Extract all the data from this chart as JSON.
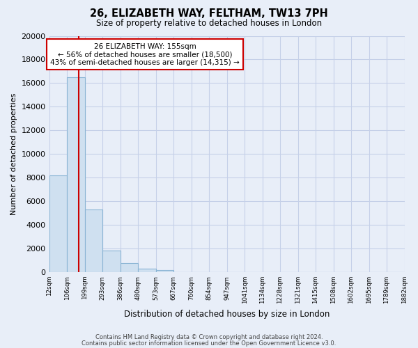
{
  "title": "26, ELIZABETH WAY, FELTHAM, TW13 7PH",
  "subtitle": "Size of property relative to detached houses in London",
  "xlabel": "Distribution of detached houses by size in London",
  "ylabel": "Number of detached properties",
  "bar_values": [
    8200,
    16500,
    5300,
    1800,
    750,
    300,
    200,
    0,
    0,
    0,
    0,
    0,
    0,
    0,
    0,
    0,
    0,
    0,
    0,
    0
  ],
  "bar_labels": [
    "12sqm",
    "106sqm",
    "199sqm",
    "293sqm",
    "386sqm",
    "480sqm",
    "573sqm",
    "667sqm",
    "760sqm",
    "854sqm",
    "947sqm",
    "1041sqm",
    "1134sqm",
    "1228sqm",
    "1321sqm",
    "1415sqm",
    "1508sqm",
    "1602sqm",
    "1695sqm",
    "1789sqm",
    "1882sqm"
  ],
  "bar_color": "#cfe0f0",
  "bar_edge_color": "#8ab4d4",
  "vline_color": "#cc0000",
  "vline_x": 1.15,
  "ylim": [
    0,
    20000
  ],
  "yticks": [
    0,
    2000,
    4000,
    6000,
    8000,
    10000,
    12000,
    14000,
    16000,
    18000,
    20000
  ],
  "annotation_title": "26 ELIZABETH WAY: 155sqm",
  "annotation_line1": "← 56% of detached houses are smaller (18,500)",
  "annotation_line2": "43% of semi-detached houses are larger (14,315) →",
  "annotation_box_facecolor": "#ffffff",
  "annotation_box_edgecolor": "#cc0000",
  "footer_line1": "Contains HM Land Registry data © Crown copyright and database right 2024.",
  "footer_line2": "Contains public sector information licensed under the Open Government Licence v3.0.",
  "bg_color": "#e8eef8",
  "plot_bg_color": "#e8eef8",
  "grid_color": "#c5d0e8"
}
